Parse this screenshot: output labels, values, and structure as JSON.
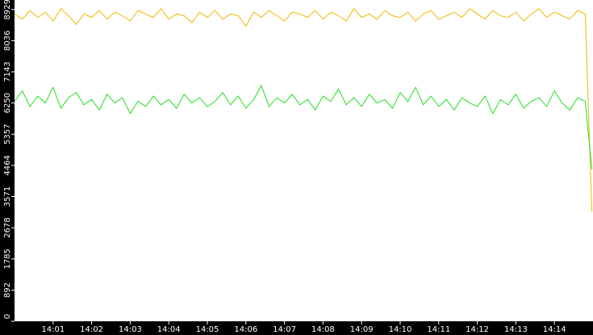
{
  "chart_data": {
    "type": "line",
    "x": [
      0,
      0.2,
      0.4,
      0.6,
      0.8,
      1,
      1.2,
      1.4,
      1.6,
      1.8,
      2,
      2.2,
      2.4,
      2.6,
      2.8,
      3,
      3.2,
      3.4,
      3.6,
      3.8,
      4,
      4.2,
      4.4,
      4.6,
      4.8,
      5,
      5.2,
      5.4,
      5.6,
      5.8,
      6,
      6.2,
      6.4,
      6.6,
      6.8,
      7,
      7.2,
      7.4,
      7.6,
      7.8,
      8,
      8.2,
      8.4,
      8.6,
      8.8,
      9,
      9.2,
      9.4,
      9.6,
      9.8,
      10,
      10.2,
      10.4,
      10.6,
      10.8,
      11,
      11.2,
      11.4,
      11.6,
      11.8,
      12,
      12.2,
      12.4,
      12.6,
      12.8,
      13,
      13.2,
      13.4,
      13.6,
      13.8,
      14,
      14.2,
      14.4,
      14.6,
      14.8,
      14.97
    ],
    "series": [
      {
        "color": "#f2b800",
        "values": [
          8800,
          8650,
          8900,
          8700,
          8850,
          8600,
          8950,
          8750,
          8500,
          8800,
          8700,
          8900,
          8650,
          8850,
          8750,
          8600,
          8900,
          8800,
          8700,
          8950,
          8650,
          8800,
          8750,
          8550,
          8850,
          8700,
          8900,
          8650,
          8800,
          8750,
          8450,
          8850,
          8700,
          8900,
          8750,
          8600,
          8850,
          8800,
          8700,
          8900,
          8650,
          8850,
          8750,
          8600,
          8950,
          8700,
          8800,
          8650,
          8900,
          8750,
          8700,
          8850,
          8600,
          8800,
          8900,
          8650,
          8750,
          8850,
          8700,
          8950,
          8800,
          8650,
          8900,
          8750,
          8700,
          8850,
          8600,
          8800,
          8950,
          8700,
          8850,
          8750,
          8650,
          8900,
          8800,
          3140
        ]
      },
      {
        "color": "#22dd22",
        "values": [
          6300,
          6600,
          6150,
          6450,
          6250,
          6700,
          6100,
          6400,
          6550,
          6200,
          6350,
          6050,
          6500,
          6250,
          6400,
          5950,
          6300,
          6150,
          6450,
          6200,
          6350,
          6100,
          6500,
          6250,
          6400,
          6150,
          6300,
          6550,
          6200,
          6450,
          6100,
          6350,
          6750,
          6150,
          6400,
          6250,
          6500,
          6200,
          6350,
          6050,
          6450,
          6300,
          6650,
          6200,
          6400,
          6150,
          6500,
          6250,
          6350,
          6100,
          6550,
          6300,
          6700,
          6200,
          6450,
          6150,
          6350,
          6050,
          6400,
          6250,
          6150,
          6450,
          5950,
          6350,
          6200,
          6500,
          6100,
          6300,
          6400,
          6150,
          6600,
          6250,
          6050,
          6400,
          6300,
          4350
        ]
      }
    ],
    "xlim": [
      0,
      15
    ],
    "xticks": [
      {
        "value": 1,
        "label": "14:01"
      },
      {
        "value": 2,
        "label": "14:02"
      },
      {
        "value": 3,
        "label": "14:03"
      },
      {
        "value": 4,
        "label": "14:04"
      },
      {
        "value": 5,
        "label": "14:05"
      },
      {
        "value": 6,
        "label": "14:06"
      },
      {
        "value": 7,
        "label": "14:07"
      },
      {
        "value": 8,
        "label": "14:08"
      },
      {
        "value": 9,
        "label": "14:09"
      },
      {
        "value": 10,
        "label": "14:10"
      },
      {
        "value": 11,
        "label": "14:11"
      },
      {
        "value": 12,
        "label": "14:12"
      },
      {
        "value": 13,
        "label": "14:13"
      },
      {
        "value": 14,
        "label": "14:14"
      }
    ],
    "ylim": [
      0,
      9200
    ],
    "yticks": [
      0,
      892,
      1785,
      2678,
      3571,
      4464,
      5357,
      6250,
      7143,
      8036,
      8929
    ]
  }
}
